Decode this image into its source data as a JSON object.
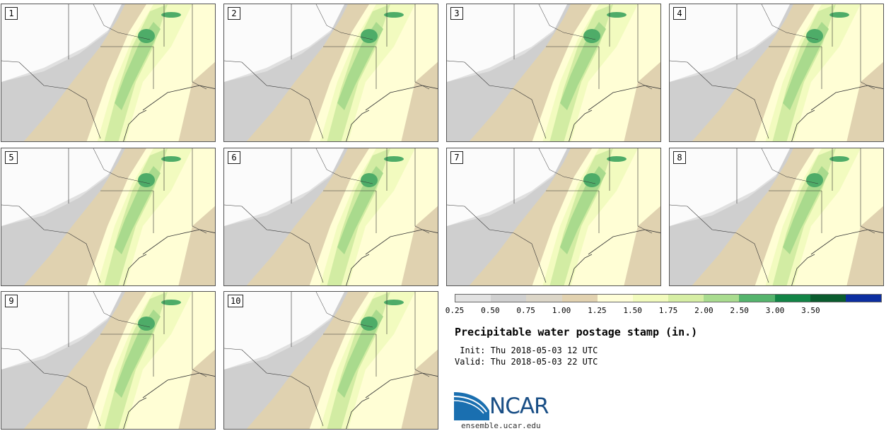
{
  "figure": {
    "title": "Precipitable water postage stamp (in.)",
    "init_label": "Init:",
    "init_value": "Thu 2018-05-03 12 UTC",
    "valid_label": "Valid:",
    "valid_value": "Thu 2018-05-03 22 UTC",
    "logo_text": "NCAR",
    "website": "ensemble.ucar.edu"
  },
  "panels": [
    {
      "member": "1"
    },
    {
      "member": "2"
    },
    {
      "member": "3"
    },
    {
      "member": "4"
    },
    {
      "member": "5"
    },
    {
      "member": "6"
    },
    {
      "member": "7"
    },
    {
      "member": "8"
    },
    {
      "member": "9"
    },
    {
      "member": "10"
    }
  ],
  "colorbar": {
    "ticks": [
      "0.25",
      "0.50",
      "0.75",
      "1.00",
      "1.25",
      "1.50",
      "1.75",
      "2.00",
      "2.50",
      "3.00",
      "3.50"
    ],
    "colors": [
      "#e2e2e2",
      "#d0d0d0",
      "#dcd6c8",
      "#e2d2b0",
      "#fffed8",
      "#f2fbbd",
      "#d6eea4",
      "#a9dc8f",
      "#55b46d",
      "#128446",
      "#0a5c2e",
      "#0c2ea0"
    ]
  },
  "map_colors": {
    "white": "#ffffff",
    "grey_light": "#e0e0e0",
    "grey_mid": "#cfcfcf",
    "tan": "#e0d2b0",
    "cream": "#fffed5",
    "lime": "#f2fbbf",
    "green_light": "#d2eca3",
    "green_mid": "#a9da8d",
    "green_dark": "#4eac68",
    "border": "#333333"
  }
}
